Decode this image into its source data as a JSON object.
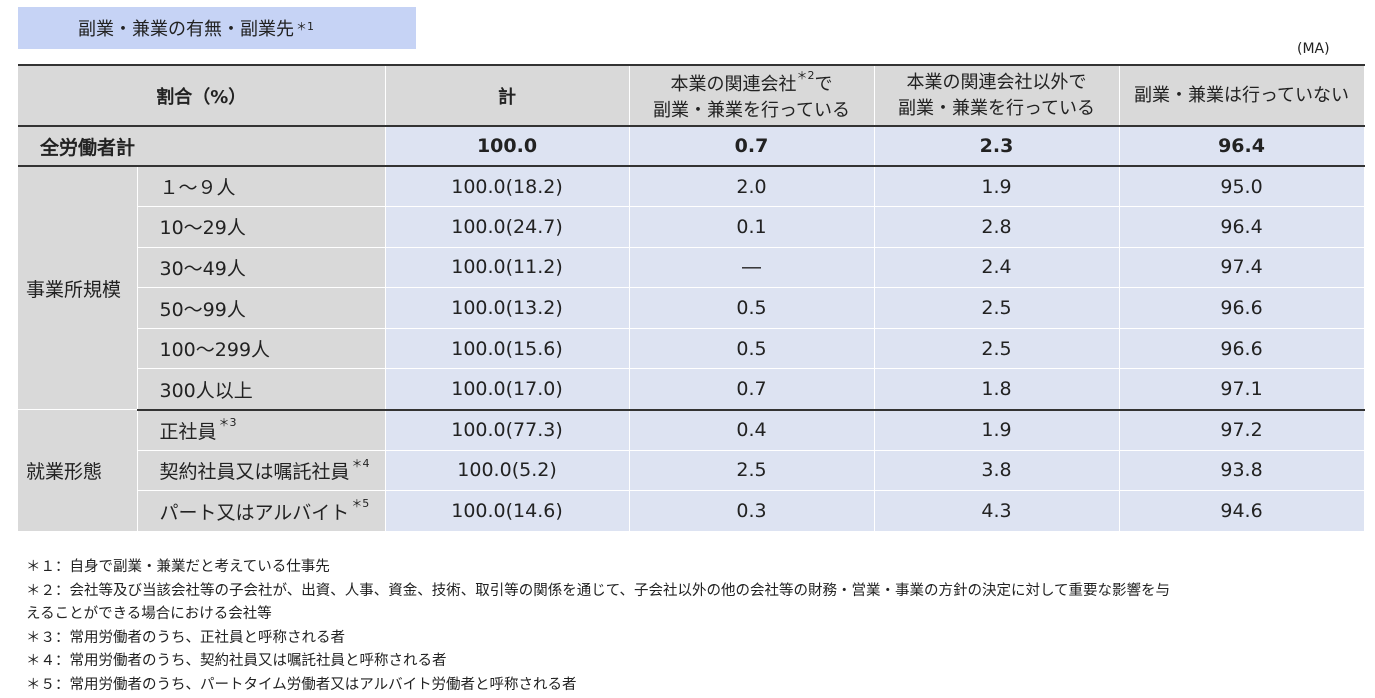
{
  "title": "副業・兼業の有無・副業先",
  "title_sup": "＊1",
  "unit": "(MA)",
  "table": {
    "header": {
      "label": "割合（%）",
      "total": "計",
      "col1_line1": "本業の関連会社",
      "col1_sup": "＊2",
      "col1_line1_tail": "で",
      "col1_line2": "副業・兼業を行っている",
      "col2_line1": "本業の関連会社以外で",
      "col2_line2": "副業・兼業を行っている",
      "col3": "副業・兼業は行っていない"
    },
    "total_row": {
      "label": "全労働者計",
      "total": "100.0",
      "col1": "0.7",
      "col2": "2.3",
      "col3": "96.4"
    },
    "groups": [
      {
        "name": "事業所規模",
        "rows": [
          {
            "label": "１～９人",
            "sup": "",
            "total": "100.0(18.2)",
            "col1": "2.0",
            "col2": "1.9",
            "col3": "95.0"
          },
          {
            "label": "10～29人",
            "sup": "",
            "total": "100.0(24.7)",
            "col1": "0.1",
            "col2": "2.8",
            "col3": "96.4"
          },
          {
            "label": "30～49人",
            "sup": "",
            "total": "100.0(11.2)",
            "col1": "―",
            "col2": "2.4",
            "col3": "97.4"
          },
          {
            "label": "50～99人",
            "sup": "",
            "total": "100.0(13.2)",
            "col1": "0.5",
            "col2": "2.5",
            "col3": "96.6"
          },
          {
            "label": "100～299人",
            "sup": "",
            "total": "100.0(15.6)",
            "col1": "0.5",
            "col2": "2.5",
            "col3": "96.6"
          },
          {
            "label": "300人以上",
            "sup": "",
            "total": "100.0(17.0)",
            "col1": "0.7",
            "col2": "1.8",
            "col3": "97.1"
          }
        ]
      },
      {
        "name": "就業形態",
        "rows": [
          {
            "label": "正社員",
            "sup": "＊3",
            "total": "100.0(77.3)",
            "col1": "0.4",
            "col2": "1.9",
            "col3": "97.2"
          },
          {
            "label": "契約社員又は嘱託社員",
            "sup": "＊4",
            "total": "100.0(5.2)",
            "col1": "2.5",
            "col2": "3.8",
            "col3": "93.8"
          },
          {
            "label": "パート又はアルバイト",
            "sup": "＊5",
            "total": "100.0(14.6)",
            "col1": "0.3",
            "col2": "4.3",
            "col3": "94.6"
          }
        ]
      }
    ]
  },
  "notes": [
    "＊１：自身で副業・兼業だと考えている仕事先",
    "＊２：会社等及び当該会社等の子会社が、出資、人事、資金、技術、取引等の関係を通じて、子会社以外の他の会社等の財務・営業・事業の方針の決定に対して重要な影響を与",
    "えることができる場合における会社等",
    "＊３：常用労働者のうち、正社員と呼称される者",
    "＊４：常用労働者のうち、契約社員又は嘱託社員と呼称される者",
    "＊５：常用労働者のうち、パートタイム労働者又はアルバイト労働者と呼称される者"
  ]
}
